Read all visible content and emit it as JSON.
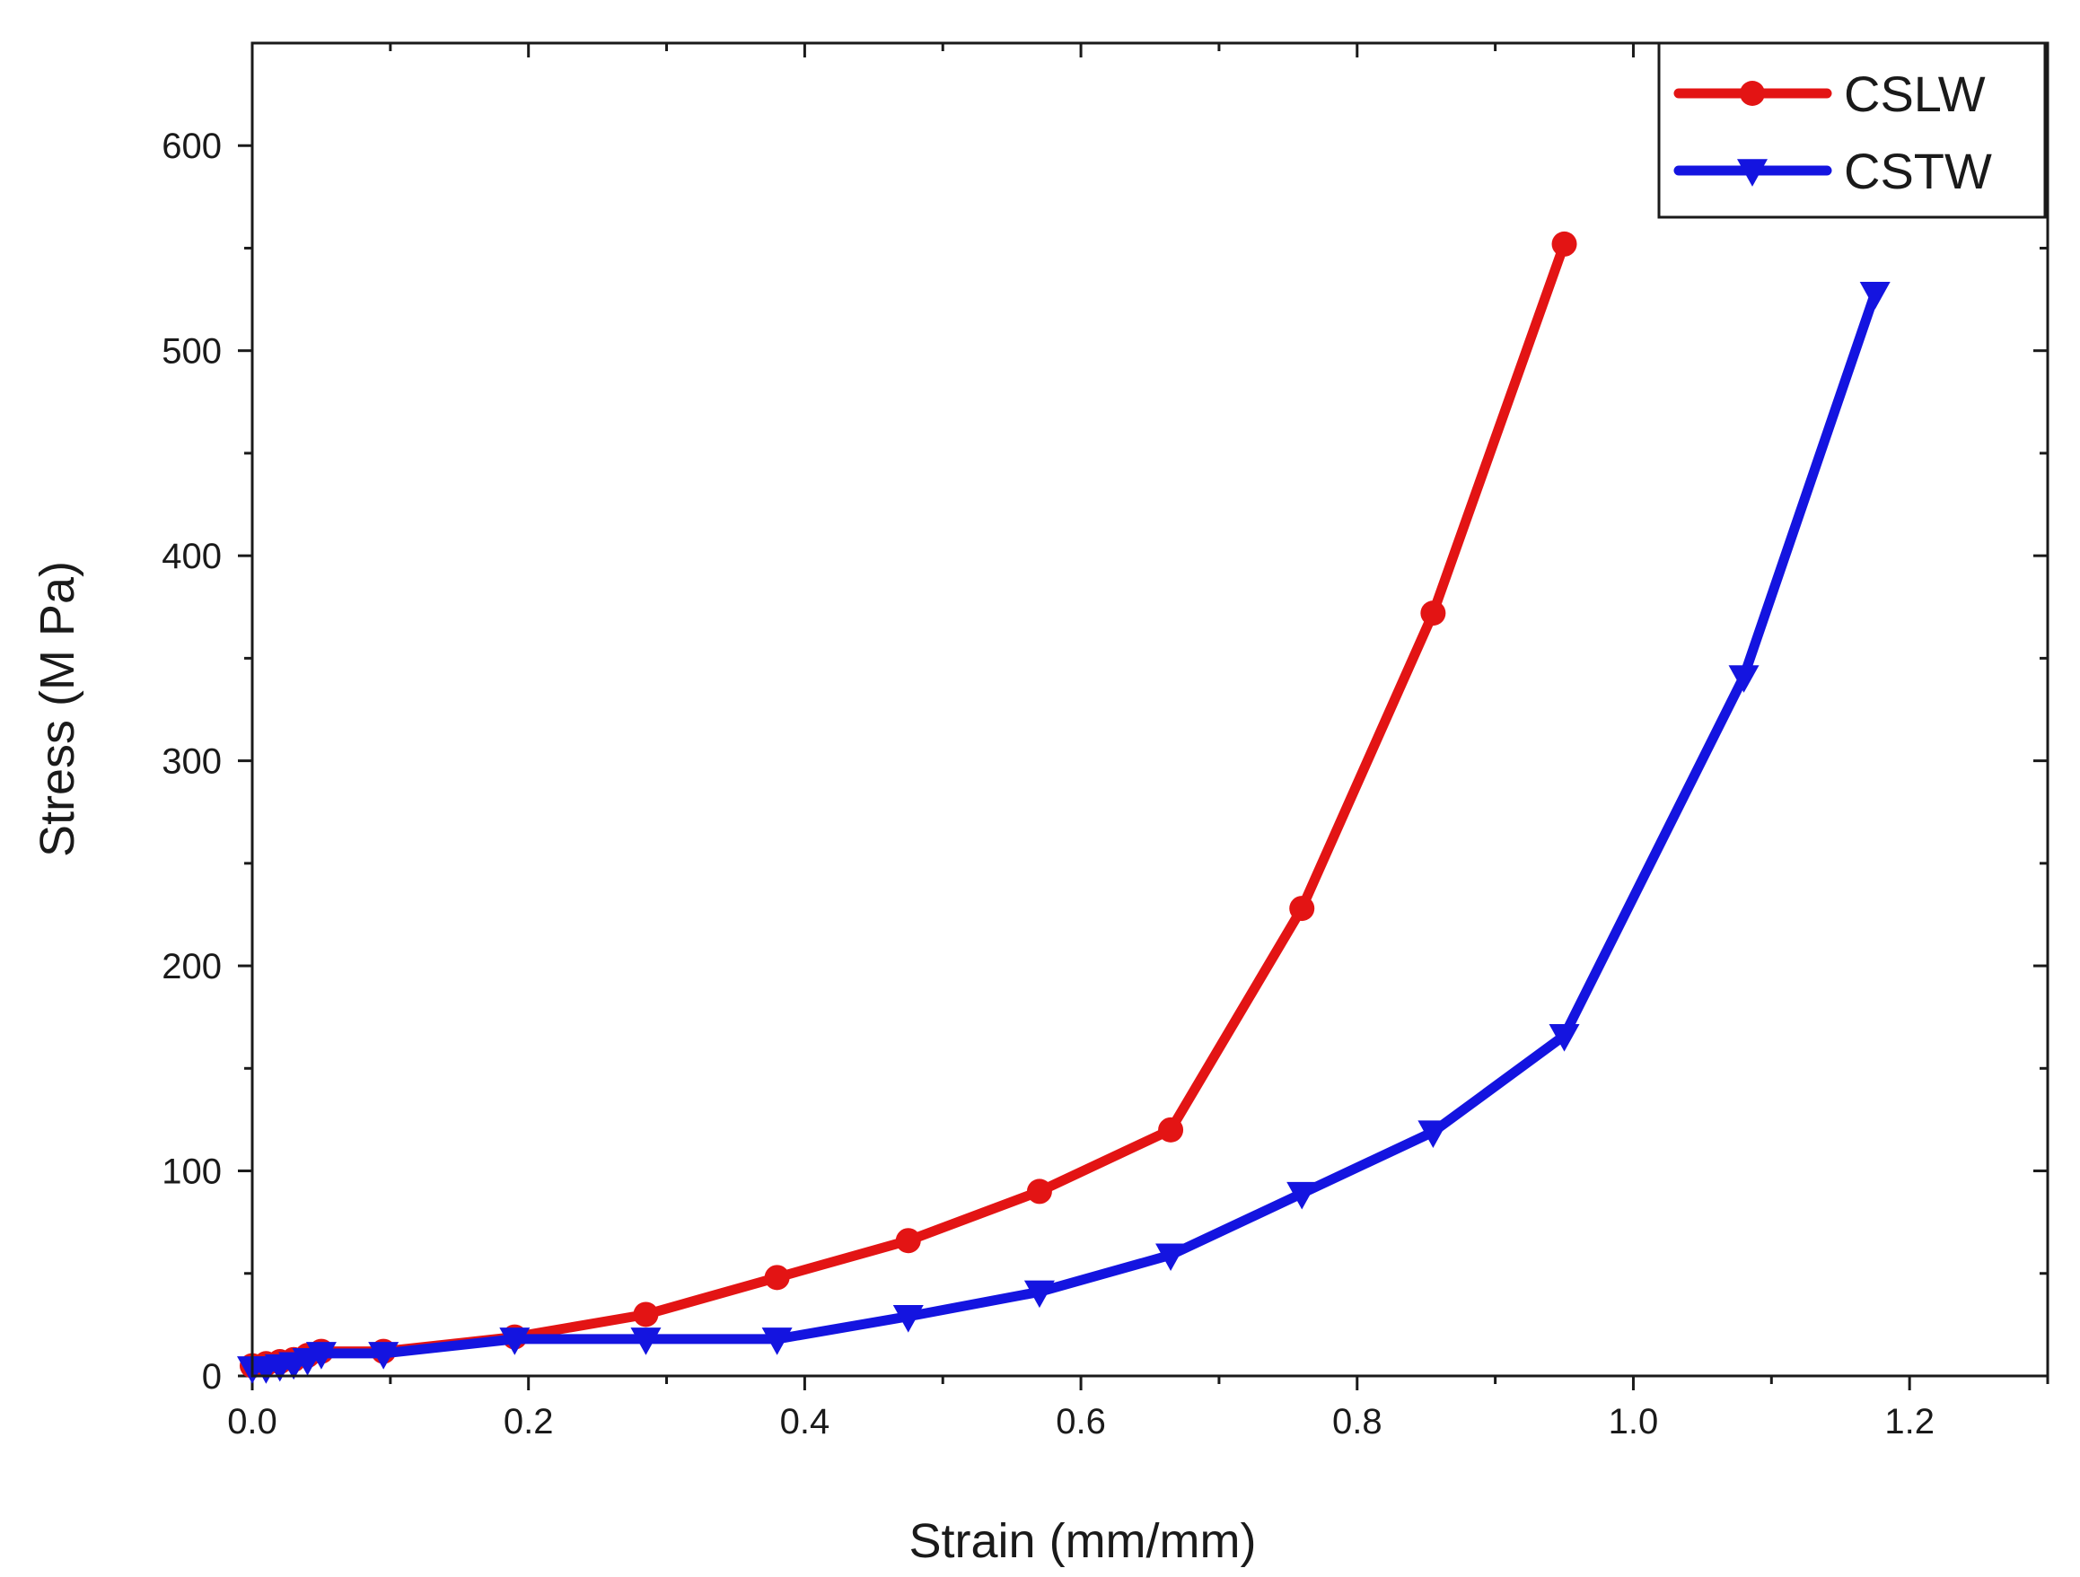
{
  "chart_data": {
    "type": "line",
    "title": "",
    "xlabel": "Strain (mm/mm)",
    "ylabel": "Stress (M Pa)",
    "xlim": [
      0,
      1.3
    ],
    "ylim": [
      0,
      650
    ],
    "x_ticks": [
      0.0,
      0.2,
      0.4,
      0.6,
      0.8,
      1.0,
      1.2
    ],
    "x_tick_labels": [
      "0.0",
      "0.2",
      "0.4",
      "0.6",
      "0.8",
      "1.0",
      "1.2"
    ],
    "y_ticks": [
      0,
      100,
      200,
      300,
      400,
      500,
      600
    ],
    "y_tick_labels": [
      "0",
      "100",
      "200",
      "300",
      "400",
      "500",
      "600"
    ],
    "legend_position": "top-right",
    "series": [
      {
        "name": "CSLW",
        "color": "#e31414",
        "marker": "circle",
        "x": [
          0,
          0.01,
          0.02,
          0.03,
          0.04,
          0.05,
          0.095,
          0.19,
          0.285,
          0.38,
          0.475,
          0.57,
          0.665,
          0.76,
          0.855,
          0.95
        ],
        "y": [
          5,
          6,
          7,
          8,
          10,
          12,
          12,
          19,
          30,
          48,
          66,
          90,
          120,
          228,
          372,
          552
        ]
      },
      {
        "name": "CSTW",
        "color": "#1414e0",
        "marker": "triangle-down",
        "x": [
          0,
          0.01,
          0.02,
          0.03,
          0.04,
          0.05,
          0.095,
          0.19,
          0.285,
          0.38,
          0.475,
          0.57,
          0.665,
          0.76,
          0.855,
          0.95,
          1.08,
          1.175
        ],
        "y": [
          4,
          4,
          5,
          6,
          8,
          11,
          11,
          18,
          18,
          18,
          29,
          41,
          59,
          89,
          119,
          166,
          341,
          528
        ]
      }
    ]
  }
}
